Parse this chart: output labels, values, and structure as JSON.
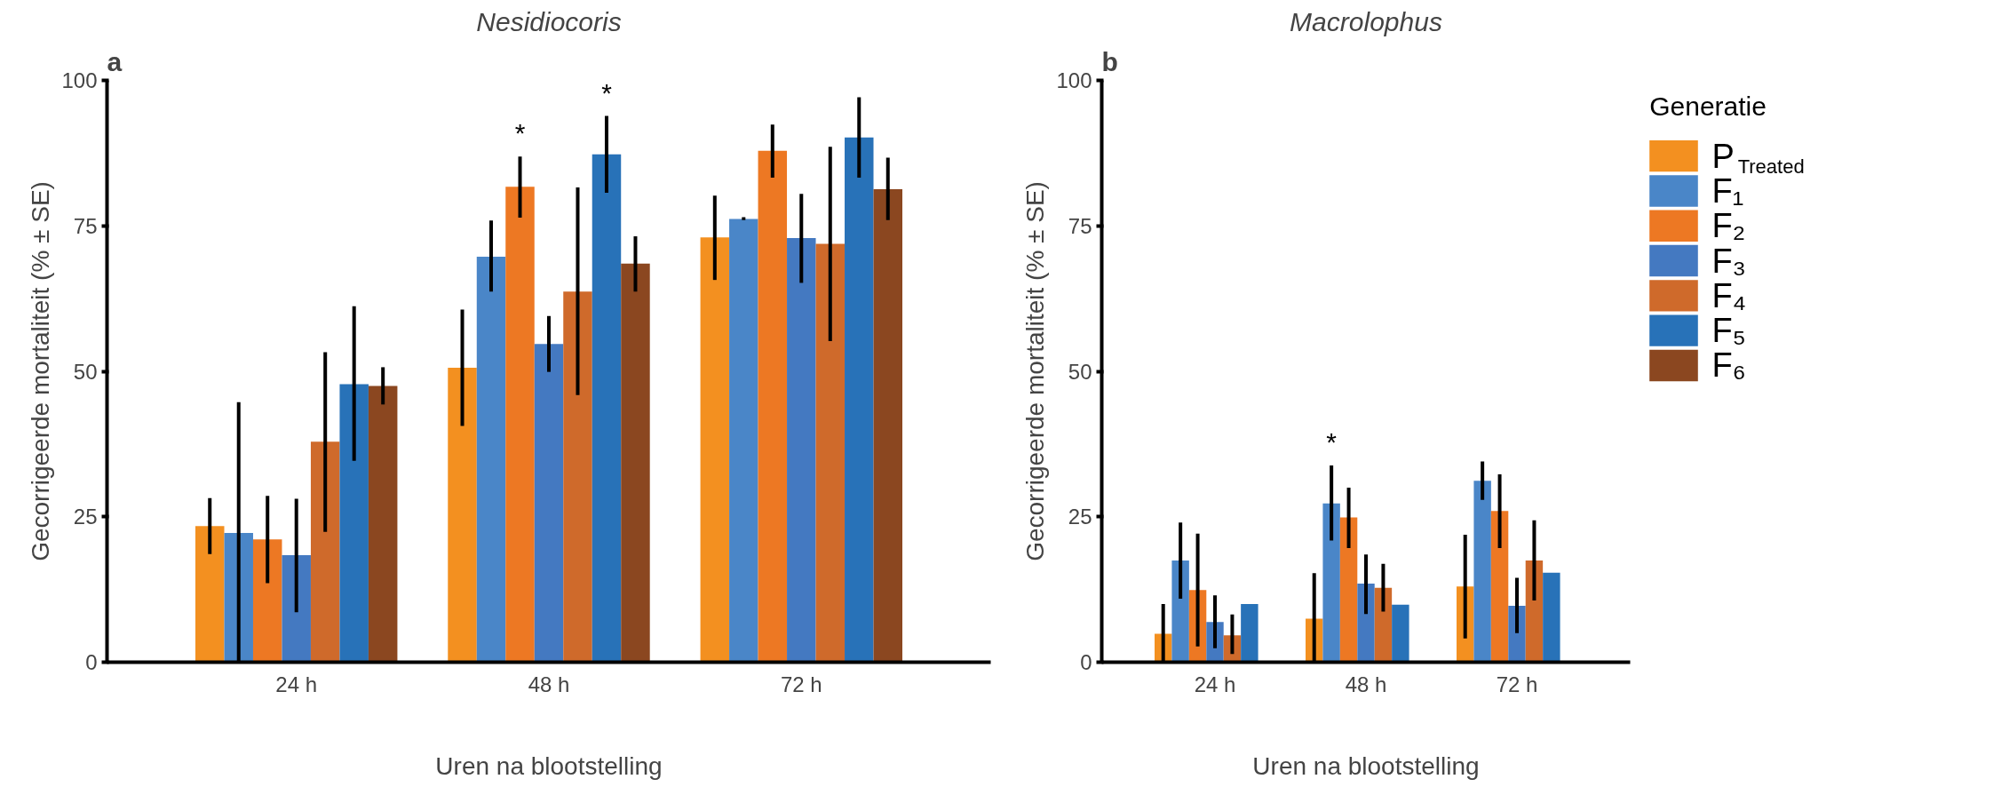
{
  "chart_data": [
    {
      "type": "bar",
      "title": "Nesidiocoris",
      "xlabel": "Uren na blootstelling",
      "ylabel": "Gecorrigeerde mortaliteit (% ± SE)",
      "categories": [
        "24 h",
        "48 h",
        "72 h"
      ],
      "ylim": [
        0,
        100
      ],
      "yticks": [
        0,
        25,
        50,
        75,
        100
      ],
      "grid": false,
      "legend": "right",
      "legend_title": "Generatie",
      "annotations": [
        "a"
      ],
      "series": [
        {
          "name": "P$_{Treated}$",
          "color": "#f39020",
          "values": [
            23.4,
            50.6,
            73.0
          ],
          "errors": [
            [
              18.6,
              28.2
            ],
            [
              40.6,
              60.6
            ],
            [
              65.7,
              80.2
            ]
          ]
        },
        {
          "name": "F₁",
          "color": "#4a86c8",
          "values": [
            22.2,
            69.7,
            76.2
          ],
          "errors": [
            [
              0,
              44.7
            ],
            [
              63.7,
              75.9
            ],
            [
              76.0,
              76.5
            ]
          ]
        },
        {
          "name": "F₂",
          "color": "#ed7823",
          "values": [
            21.1,
            81.7,
            87.9
          ],
          "errors": [
            [
              13.6,
              28.6
            ],
            [
              76.4,
              86.9
            ],
            [
              83.3,
              92.4
            ]
          ],
          "value_labels": [
            null,
            "*",
            null
          ]
        },
        {
          "name": "F₃",
          "color": "#4479c1",
          "values": [
            18.4,
            54.7,
            72.9
          ],
          "errors": [
            [
              8.6,
              28.1
            ],
            [
              49.9,
              59.5
            ],
            [
              65.2,
              80.5
            ]
          ]
        },
        {
          "name": "F₄",
          "color": "#cf6a2b",
          "values": [
            37.9,
            63.7,
            71.9
          ],
          "errors": [
            [
              22.4,
              53.3
            ],
            [
              45.9,
              81.6
            ],
            [
              55.2,
              88.6
            ]
          ]
        },
        {
          "name": "F₅",
          "color": "#2872b8",
          "values": [
            47.8,
            87.3,
            90.2
          ],
          "errors": [
            [
              34.6,
              61.2
            ],
            [
              80.7,
              93.9
            ],
            [
              83.3,
              97.1
            ]
          ],
          "value_labels": [
            null,
            "*",
            null
          ]
        },
        {
          "name": "F₆",
          "color": "#8b4720",
          "values": [
            47.5,
            68.5,
            81.3
          ],
          "errors": [
            [
              44.3,
              50.7
            ],
            [
              63.7,
              73.2
            ],
            [
              76.0,
              86.7
            ]
          ]
        }
      ]
    },
    {
      "type": "bar",
      "title": "Macrolophus",
      "xlabel": "Uren na blootstelling",
      "ylabel": "Gecorrigeerde mortaliteit (% ± SE)",
      "categories": [
        "24 h",
        "48 h",
        "72 h"
      ],
      "ylim": [
        0,
        100
      ],
      "yticks": [
        0,
        25,
        50,
        75,
        100
      ],
      "grid": false,
      "annotations": [
        "b"
      ],
      "series": [
        {
          "color": "#f39020",
          "values": [
            4.9,
            7.5,
            13.0
          ],
          "errors": [
            [
              0,
              10.0
            ],
            [
              0,
              15.3
            ],
            [
              4.1,
              21.9
            ]
          ]
        },
        {
          "color": "#4a86c8",
          "values": [
            17.5,
            27.3,
            31.2
          ],
          "errors": [
            [
              10.9,
              24.0
            ],
            [
              20.9,
              33.8
            ],
            [
              27.9,
              34.5
            ]
          ],
          "value_labels": [
            null,
            "*",
            null
          ]
        },
        {
          "color": "#ed7823",
          "values": [
            12.4,
            24.9,
            26.0
          ],
          "errors": [
            [
              2.7,
              22.1
            ],
            [
              19.6,
              30.0
            ],
            [
              19.6,
              32.3
            ]
          ]
        },
        {
          "color": "#4479c1",
          "values": [
            6.9,
            13.5,
            9.7
          ],
          "errors": [
            [
              2.4,
              11.5
            ],
            [
              8.3,
              18.5
            ],
            [
              5.0,
              14.5
            ]
          ]
        },
        {
          "color": "#cf6a2b",
          "values": [
            4.6,
            12.8,
            17.5
          ],
          "errors": [
            [
              1.4,
              8.2
            ],
            [
              8.7,
              16.9
            ],
            [
              10.6,
              24.4
            ]
          ]
        },
        {
          "color": "#2872b8",
          "values": [
            10.0,
            9.9,
            15.4
          ],
          "errors": [
            null,
            null,
            null
          ]
        },
        {
          "color": "#8b4720",
          "values": [
            null,
            null,
            null
          ],
          "errors": [
            null,
            null,
            null
          ]
        }
      ]
    }
  ]
}
